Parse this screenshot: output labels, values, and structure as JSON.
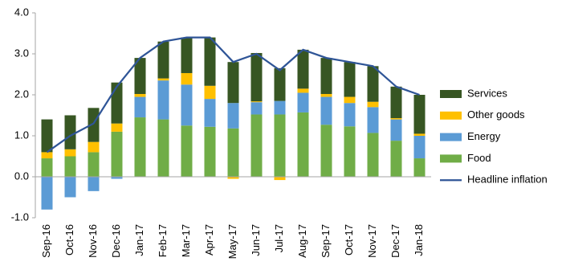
{
  "chart_data": {
    "type": "bar",
    "stacked": true,
    "categories": [
      "Sep-16",
      "Oct-16",
      "Nov-16",
      "Dec-16",
      "Jan-17",
      "Feb-17",
      "Mar-17",
      "Apr-17",
      "May-17",
      "Jun-17",
      "Jul-17",
      "Aug-17",
      "Sep-17",
      "Oct-17",
      "Nov-17",
      "Dec-17",
      "Jan-18"
    ],
    "series": [
      {
        "name": "Food",
        "type": "bar",
        "color": "#70ad47",
        "values": [
          0.45,
          0.5,
          0.6,
          1.1,
          1.45,
          1.4,
          1.25,
          1.22,
          1.18,
          1.52,
          1.52,
          1.57,
          1.27,
          1.23,
          1.07,
          0.88,
          0.45
        ]
      },
      {
        "name": "Energy",
        "type": "bar",
        "color": "#5b9bd5",
        "values": [
          -0.8,
          -0.5,
          -0.35,
          -0.05,
          0.5,
          0.95,
          1.0,
          0.68,
          0.62,
          0.3,
          0.33,
          0.48,
          0.68,
          0.57,
          0.63,
          0.52,
          0.55
        ]
      },
      {
        "name": "Other goods",
        "type": "bar",
        "color": "#ffc000",
        "values": [
          0.15,
          0.17,
          0.25,
          0.2,
          0.07,
          0.05,
          0.28,
          0.32,
          -0.05,
          0.02,
          -0.08,
          0.1,
          0.07,
          0.15,
          0.13,
          0.03,
          0.05
        ]
      },
      {
        "name": "Services",
        "type": "bar",
        "color": "#375623",
        "values": [
          0.8,
          0.83,
          0.83,
          1.0,
          0.88,
          0.9,
          0.87,
          1.18,
          1.0,
          1.18,
          0.8,
          0.95,
          0.88,
          0.85,
          0.87,
          0.77,
          0.95
        ]
      },
      {
        "name": "Headline inflation",
        "type": "line",
        "color": "#2f5597",
        "values": [
          0.6,
          1.0,
          1.3,
          2.2,
          2.9,
          3.3,
          3.4,
          3.4,
          2.8,
          3.0,
          2.6,
          3.1,
          2.9,
          2.8,
          2.7,
          2.2,
          2.0
        ]
      }
    ],
    "legend_order": [
      3,
      2,
      1,
      0,
      4
    ],
    "ylim": [
      -1,
      4
    ],
    "yticks": [
      {
        "value": -1,
        "label": "-1.0"
      },
      {
        "value": 0,
        "label": "0.0"
      },
      {
        "value": 1,
        "label": "1.0"
      },
      {
        "value": 2,
        "label": "2.0"
      },
      {
        "value": 3,
        "label": "3.0"
      },
      {
        "value": 4,
        "label": "4.0"
      }
    ],
    "grid": false
  }
}
